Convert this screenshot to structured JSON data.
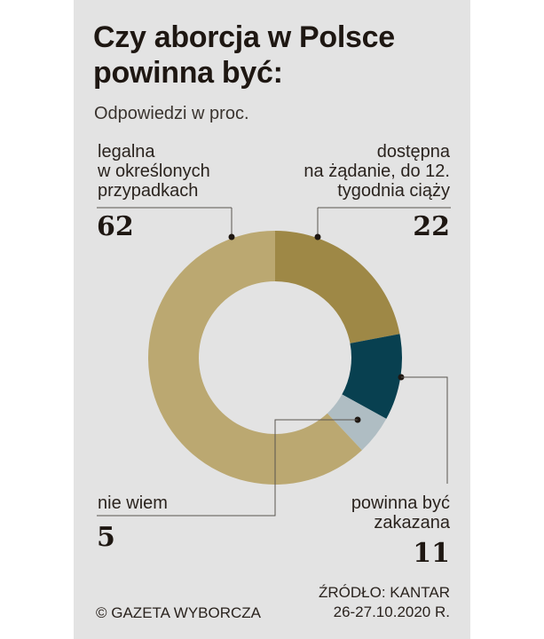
{
  "title": "Czy aborcja w Polsce powinna być:",
  "subtitle": "Odpowiedzi w proc.",
  "labels": {
    "legal_cases": [
      "legalna",
      "w określonych",
      "przypadkach"
    ],
    "on_demand": [
      "dostępna",
      "na żądanie, do 12.",
      "tygodnia ciąży"
    ],
    "dont_know": [
      "nie wiem"
    ],
    "banned": [
      "powinna być",
      "zakazana"
    ]
  },
  "values": {
    "legal_cases": "62",
    "on_demand": "22",
    "dont_know": "5",
    "banned": "11"
  },
  "footer": {
    "copyright": "© GAZETA WYBORCZA",
    "source": "ŹRÓDŁO: KANTAR",
    "date": "26-27.10.2020 R."
  },
  "colors": {
    "background": "#e3e3e3",
    "legal_cases": "#bba871",
    "on_demand": "#9e8846",
    "banned": "#084050",
    "dont_know": "#afbdc3",
    "text": "#1e1712"
  },
  "chart_data": {
    "type": "pie",
    "subtype": "donut",
    "title": "Czy aborcja w Polsce powinna być:",
    "subtitle": "Odpowiedzi w proc.",
    "categories": [
      "dostępna na żądanie, do 12. tygodnia ciąży",
      "powinna być zakazana",
      "nie wiem",
      "legalna w określonych przypadkach"
    ],
    "values": [
      22,
      11,
      5,
      62
    ],
    "colors": [
      "#9e8846",
      "#084050",
      "#afbdc3",
      "#bba871"
    ],
    "start_angle": "12 o'clock, clockwise",
    "unit": "%",
    "source": "ŹRÓDŁO: KANTAR 26-27.10.2020 R."
  }
}
